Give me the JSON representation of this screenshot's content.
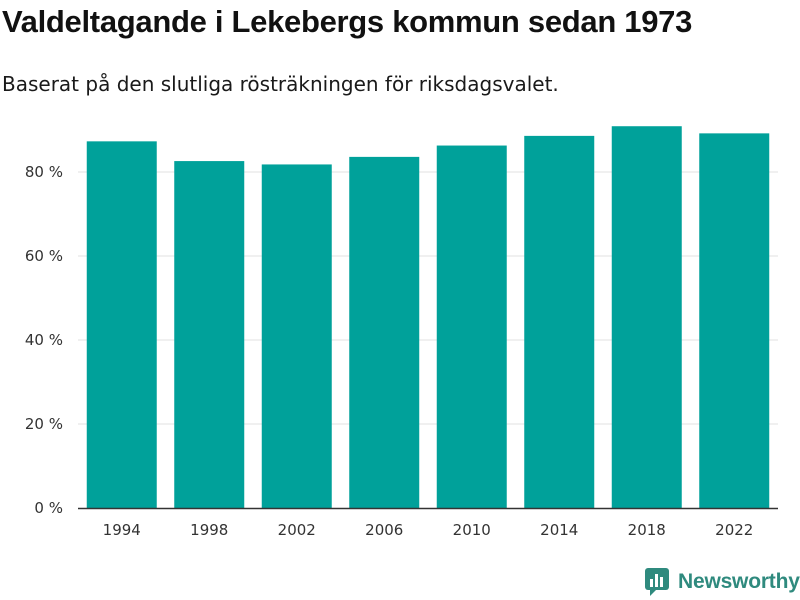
{
  "colors": {
    "bar": "#00a19a",
    "grid": "#e2e2e2",
    "axis": "#333333",
    "brand": "#2f8a7e"
  },
  "brand": {
    "name": "Newsworthy",
    "icon": "newsworthy-logo-icon"
  },
  "chart_data": {
    "type": "bar",
    "title": "Valdeltagande i Lekebergs kommun sedan 1973",
    "subtitle": "Baserat på den slutliga rösträkningen för riksdagsvalet.",
    "xlabel": "",
    "ylabel": "",
    "categories": [
      "1994",
      "1998",
      "2002",
      "2006",
      "2010",
      "2014",
      "2018",
      "2022"
    ],
    "values": [
      87.3,
      82.6,
      81.8,
      83.6,
      86.3,
      88.6,
      90.9,
      89.2
    ],
    "ylim": [
      0,
      100
    ],
    "yticks": [
      0,
      20,
      40,
      60,
      80
    ],
    "ytick_labels": [
      "0 %",
      "20 %",
      "40 %",
      "60 %",
      "80 %"
    ],
    "grid": true,
    "legend": "none"
  }
}
